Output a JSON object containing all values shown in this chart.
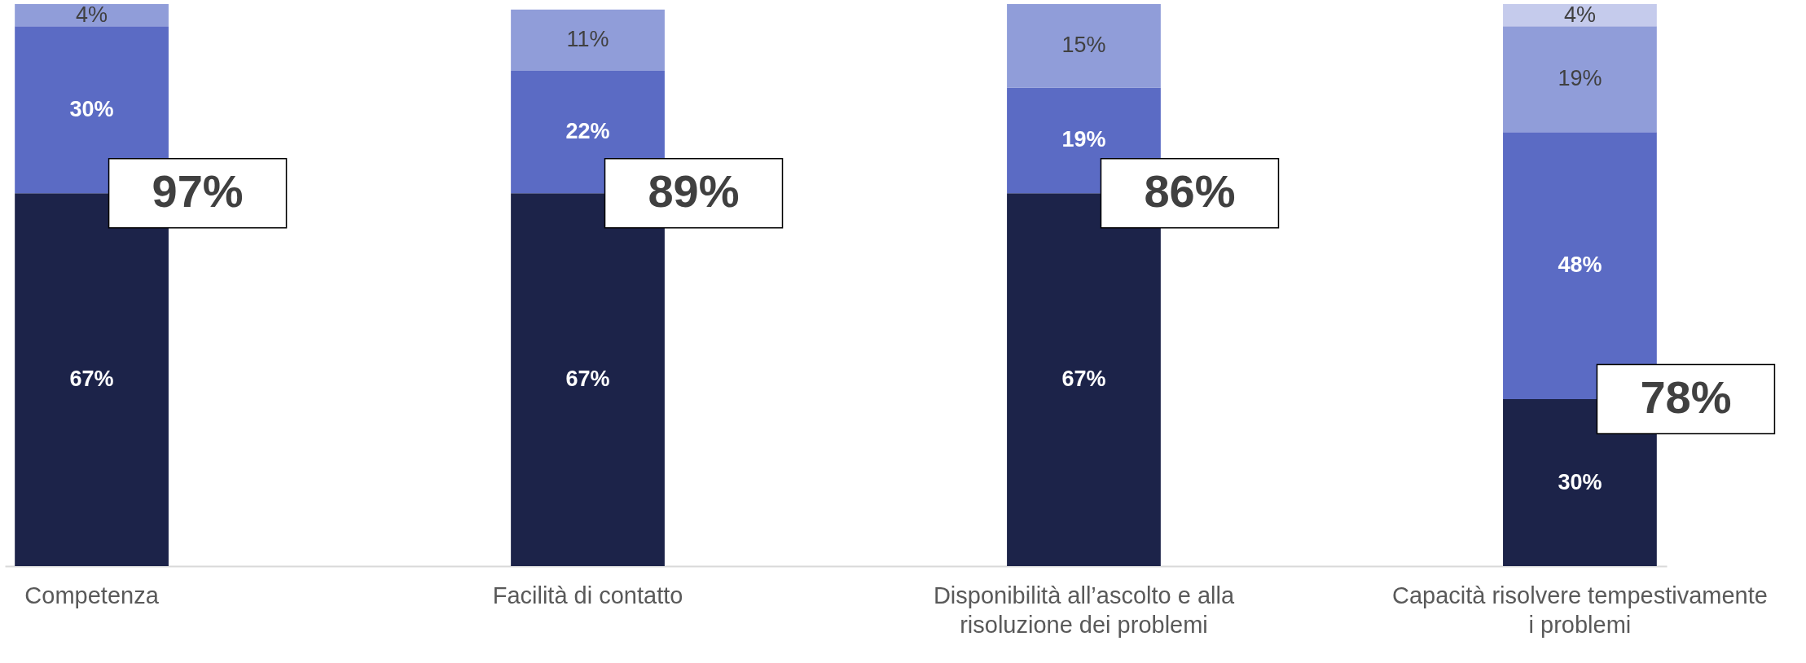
{
  "chart_data": {
    "type": "bar",
    "stacked": true,
    "categories": [
      "Competenza",
      "Facilità di contatto",
      "Disponibilità all’ascolto e alla risoluzione dei problemi",
      "Capacità risolvere tempestivamente i problemi"
    ],
    "series": [
      {
        "color": "#1c2349",
        "values": [
          67,
          67,
          67,
          30
        ],
        "value_labels": [
          "67%",
          "67%",
          "67%",
          "30%"
        ]
      },
      {
        "color": "#5b6bc4",
        "values": [
          30,
          22,
          19,
          48
        ],
        "value_labels": [
          "30%",
          "22%",
          "19%",
          "48%"
        ]
      },
      {
        "color": "#909dd9",
        "values": [
          4,
          11,
          15,
          19
        ],
        "value_labels": [
          "4%",
          "11%",
          "15%",
          "19%"
        ]
      },
      {
        "color": "#c5cbec",
        "values": [
          null,
          null,
          null,
          4
        ],
        "value_labels": [
          null,
          null,
          null,
          "4%"
        ]
      }
    ],
    "annotations": [
      {
        "text": "97%",
        "x": "Competenza",
        "y": 67
      },
      {
        "text": "89%",
        "x": "Facilità di contatto",
        "y": 67
      },
      {
        "text": "86%",
        "x": "Disponibilità all’ascolto e alla risoluzione dei problemi",
        "y": 67
      },
      {
        "text": "78%",
        "x": "Capacità risolvere tempestivamente i problemi",
        "y": 30
      }
    ],
    "ylim": [
      0,
      101
    ],
    "tick_labels": "x",
    "legend": false
  }
}
